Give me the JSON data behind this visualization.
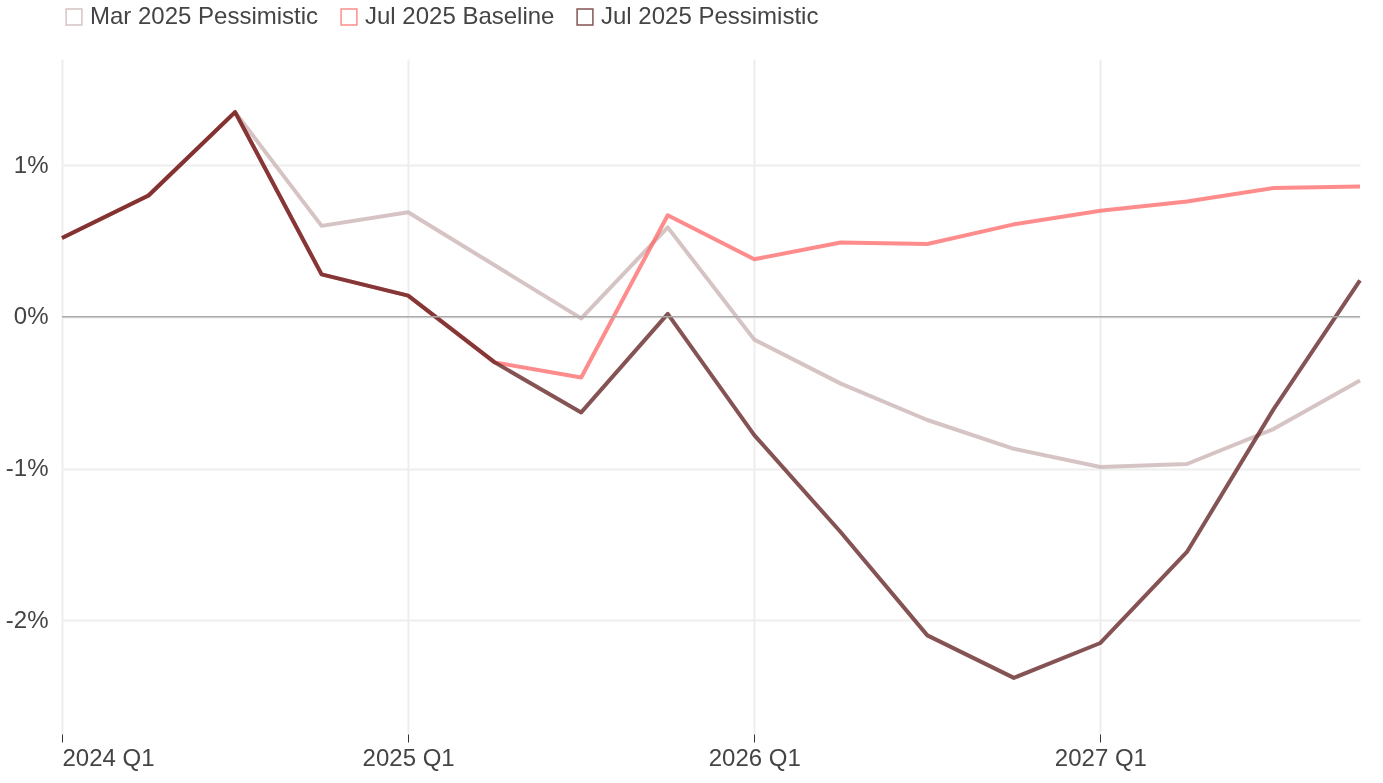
{
  "chart_data": {
    "type": "line",
    "categories": [
      "2024 Q1",
      null,
      null,
      null,
      "2025 Q1",
      null,
      null,
      null,
      "2026 Q1",
      null,
      null,
      null,
      "2027 Q1",
      null,
      null,
      null
    ],
    "series": [
      {
        "name": "Mar 2025 Pessimistic",
        "color": "#c8b0b0",
        "values": [
          0.52,
          0.8,
          1.35,
          0.6,
          0.69,
          0.34,
          -0.01,
          0.59,
          -0.15,
          -0.44,
          -0.68,
          -0.87,
          -0.99,
          -0.97,
          -0.74,
          -0.42
        ]
      },
      {
        "name": "Jul 2025 Baseline",
        "color": "#ff6666",
        "values": [
          0.52,
          0.8,
          1.35,
          0.28,
          0.14,
          -0.3,
          -0.4,
          0.67,
          0.38,
          0.49,
          0.48,
          0.61,
          0.7,
          0.76,
          0.85,
          0.86
        ]
      },
      {
        "name": "Jul 2025 Pessimistic",
        "color": "#5c1a1a",
        "values": [
          0.52,
          0.8,
          1.35,
          0.28,
          0.14,
          -0.3,
          -0.63,
          0.02,
          -0.78,
          -1.42,
          -2.1,
          -2.38,
          -2.15,
          -1.55,
          -0.61,
          0.24
        ]
      }
    ],
    "ylim": [
      -2.75,
      1.7
    ],
    "yticks": [
      {
        "value": -2,
        "label": "-2%"
      },
      {
        "value": -1,
        "label": "-1%"
      },
      {
        "value": 0,
        "label": "0%"
      },
      {
        "value": 1,
        "label": "1%"
      }
    ],
    "ref_lines": [
      {
        "axis": "y",
        "value": 0,
        "color": "#aaaaaa"
      }
    ],
    "grid": true,
    "legend": "top",
    "line_style": "solid",
    "marker": "none"
  }
}
